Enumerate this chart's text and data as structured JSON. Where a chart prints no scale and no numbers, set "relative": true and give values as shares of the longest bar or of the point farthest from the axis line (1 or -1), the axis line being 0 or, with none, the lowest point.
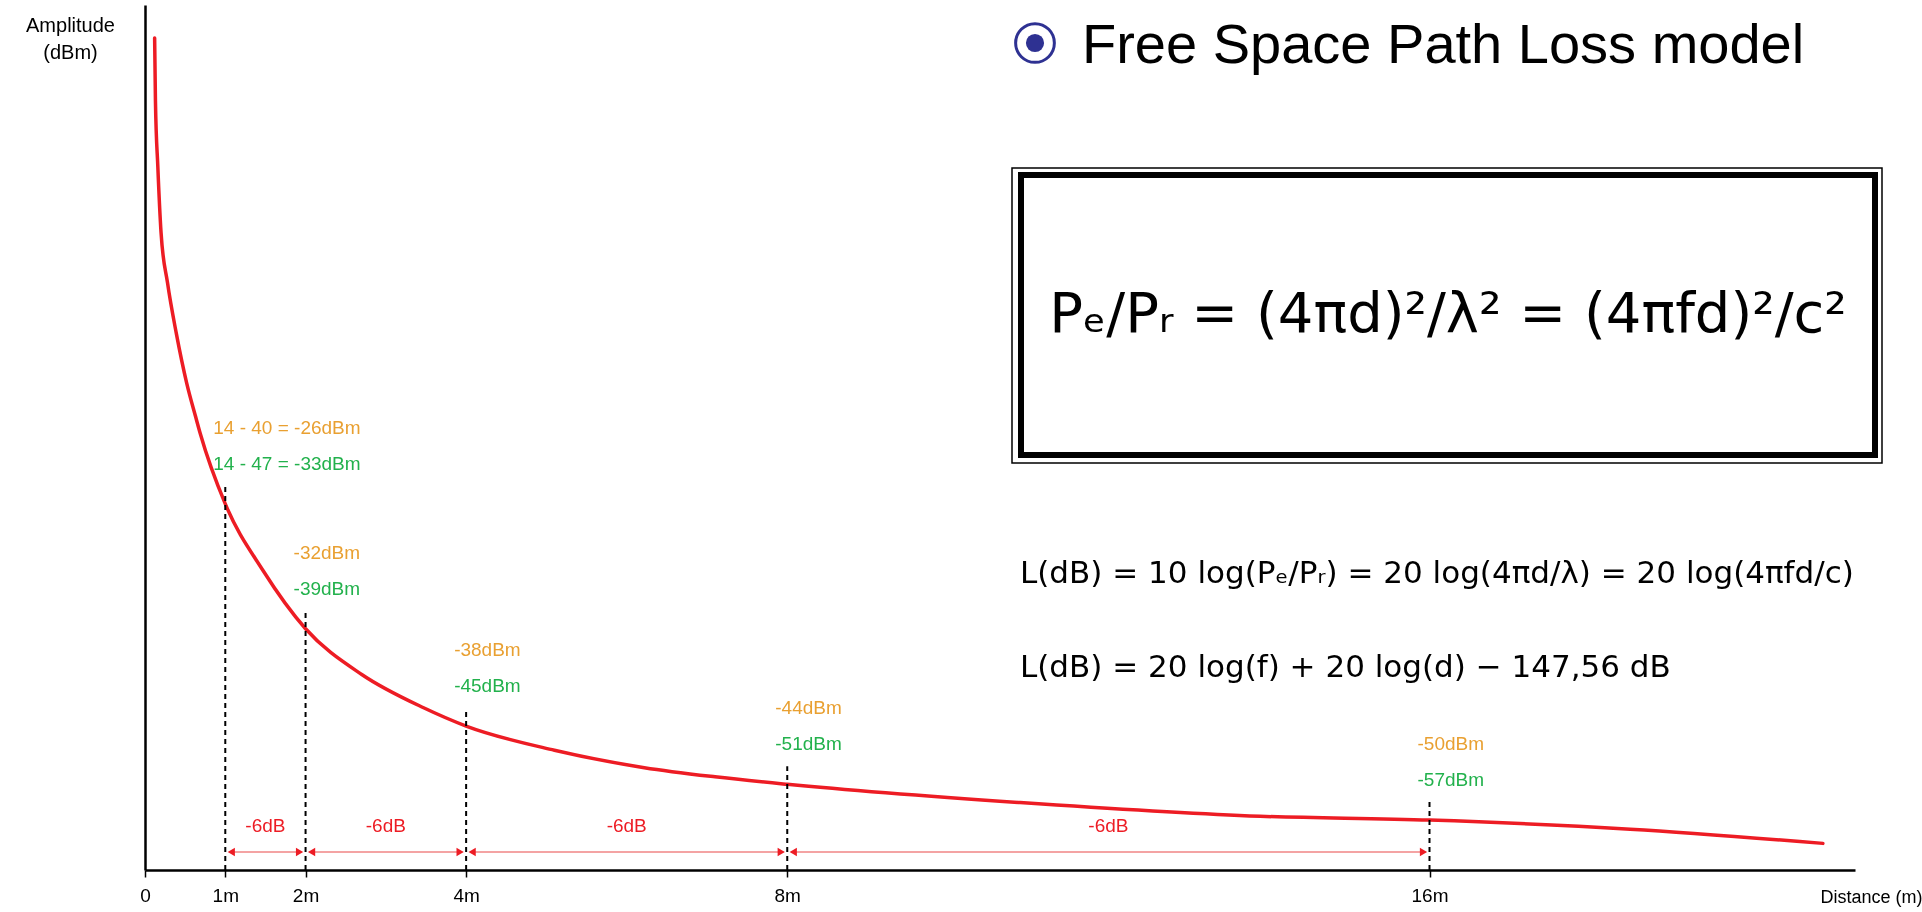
{
  "chart_data": {
    "type": "line",
    "title": "Free Space Path Loss model",
    "xlabel": "Distance (m)",
    "ylabel": "Amplitude\n(dBm)",
    "relative": true,
    "x": [
      0.12,
      0.13,
      0.16,
      0.2,
      0.28,
      0.39,
      0.52,
      0.63,
      0.69,
      1,
      1.47,
      2,
      2.7,
      3.47,
      4,
      5.1,
      6.22,
      7.1,
      8,
      10.9,
      13.76,
      16,
      18.5,
      20.9
    ],
    "values": [
      1,
      0.925,
      0.845,
      0.766,
      0.706,
      0.645,
      0.585,
      0.545,
      0.524,
      0.44,
      0.36,
      0.29,
      0.235,
      0.195,
      0.173,
      0.144,
      0.123,
      0.112,
      0.103,
      0.081,
      0.065,
      0.06,
      0.049,
      0.032
    ],
    "color": "#ed1c24",
    "xlim": [
      0,
      21.3
    ],
    "xticks": [
      0,
      {
        "value": 1,
        "label": "1m"
      },
      {
        "value": 2,
        "label": "2m"
      },
      {
        "value": 4,
        "label": "4m"
      },
      {
        "value": 8,
        "label": "8m"
      },
      {
        "value": 16,
        "label": "16m"
      }
    ],
    "ref_lines": [
      {
        "axis": "x",
        "value": 1,
        "color": "#000000",
        "line_style": "dashed"
      },
      {
        "axis": "x",
        "value": 2,
        "color": "#000000",
        "line_style": "dashed"
      },
      {
        "axis": "x",
        "value": 4,
        "color": "#000000",
        "line_style": "dashed"
      },
      {
        "axis": "x",
        "value": 8,
        "color": "#000000",
        "line_style": "dashed"
      },
      {
        "axis": "x",
        "value": 16,
        "color": "#000000",
        "line_style": "dashed"
      }
    ],
    "annotations": [
      "14 - 40 = -26dBm",
      "14 - 47 = -33dBm",
      "-32dBm",
      "-39dBm",
      "-38dBm",
      "-45dBm",
      "-44dBm",
      "-51dBm",
      "-50dBm",
      "-57dBm",
      "-6dB",
      "-6dB",
      "-6dB",
      "-6dB",
      "Pₑ/Pᵣ = (4πd)²/λ² = (4πfd)²/c²",
      "L(dB) = 10 log(Pₑ/Pᵣ) = 20 log(4πd/λ) = 20 log(4πfd/c)",
      "L(dB) = 20 log(f) + 20 log(d) − 147,56 dB"
    ]
  }
}
